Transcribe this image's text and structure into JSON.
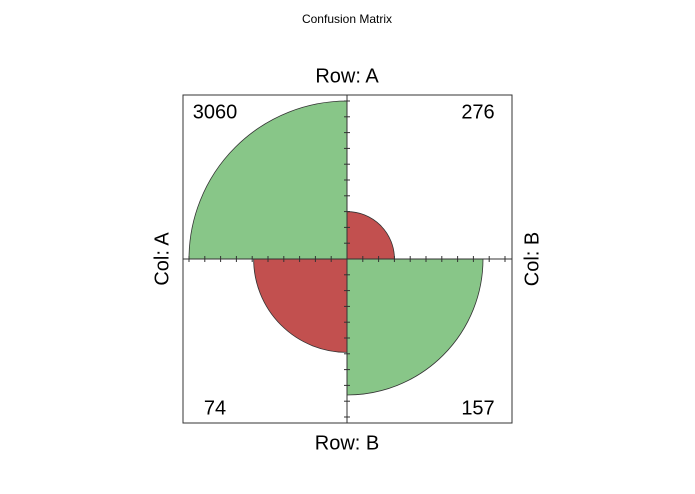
{
  "chart_data": {
    "type": "fourfold",
    "title": "Confusion Matrix",
    "row_labels": [
      "Row: A",
      "Row: B"
    ],
    "col_labels": [
      "Col: A",
      "Col: B"
    ],
    "values": [
      [
        3060,
        276
      ],
      [
        74,
        157
      ]
    ],
    "colors": [
      "#88c688",
      "#c2504f"
    ]
  }
}
